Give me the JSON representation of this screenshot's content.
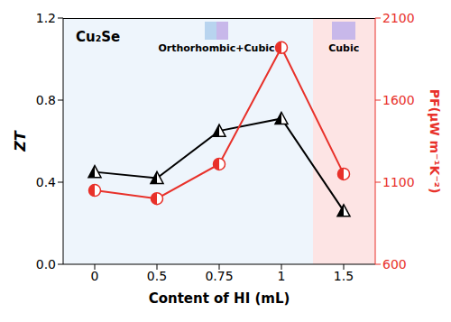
{
  "chart_data": {
    "type": "line",
    "title": "Cu₂Se",
    "x_label": "Content of HI (mL)",
    "y_label": "ZT",
    "y2_label": "PF(μW m⁻¹K⁻²)",
    "categories": [
      "0",
      "0.5",
      "0.75",
      "1",
      "1.5"
    ],
    "ylim": [
      0,
      1.2
    ],
    "yticks": [
      {
        "value": 0,
        "label": "0.0"
      },
      0.4,
      0.8,
      1.2
    ],
    "y2lim": [
      600,
      2100
    ],
    "y2ticks": [
      600,
      1100,
      1600,
      2100
    ],
    "grid": false,
    "series": [
      {
        "color": "#000000",
        "marker": "triangle",
        "values": [
          0.45,
          0.42,
          0.65,
          0.71,
          0.26
        ]
      },
      {
        "color": "#e8312a",
        "marker": "circle",
        "axis": "y2",
        "values": [
          1050,
          1000,
          1210,
          1920,
          1150
        ]
      }
    ],
    "annotations": [
      "Orthorhombic+Cubic",
      "Cubic"
    ]
  }
}
